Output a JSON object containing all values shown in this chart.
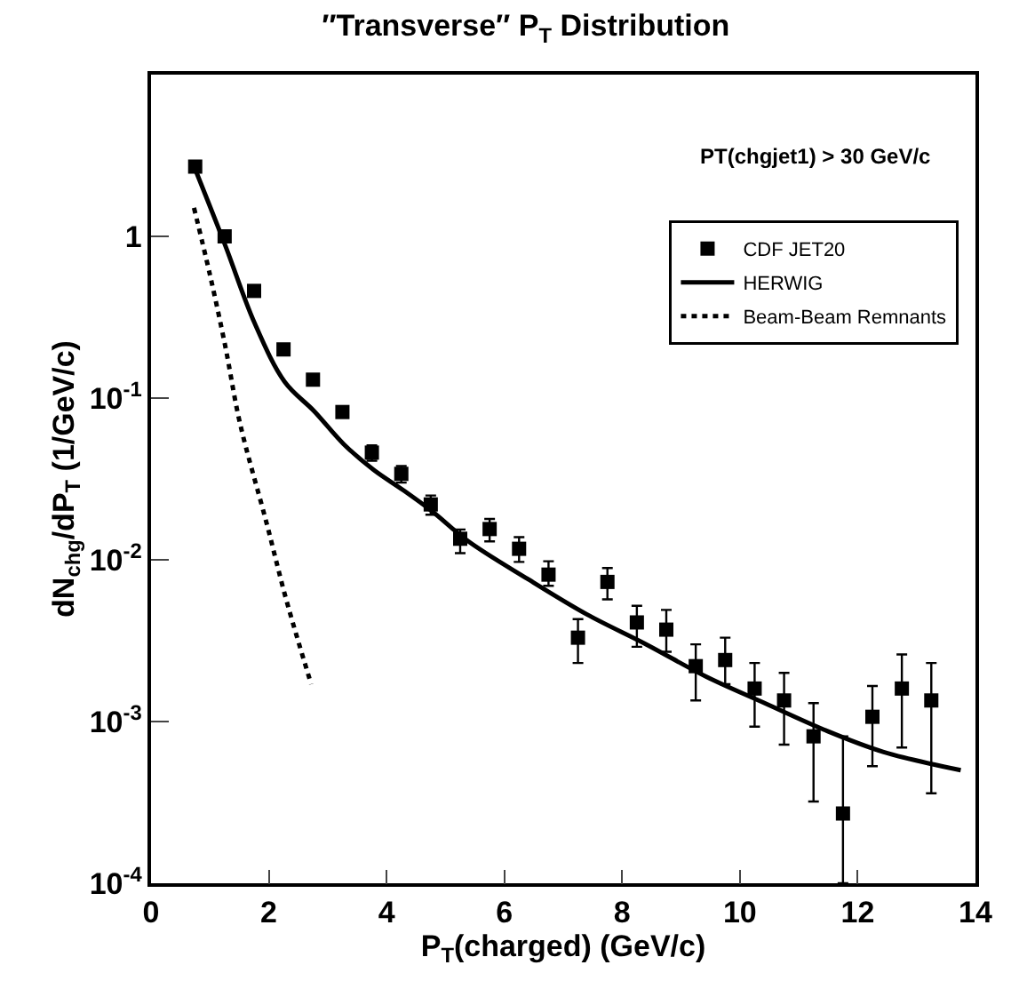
{
  "chart_data": {
    "type": "scatter",
    "title": "″Transverse″ P$_{T}$ Distribution",
    "xlabel": "P$_{T}$(charged) (GeV/c)",
    "ylabel": "dN$_{chg}$/dP$_{T}$ (1/GeV/c)",
    "annotations": [
      "PT(chgjet1) > 30 GeV/c"
    ],
    "log": "y",
    "grid": false,
    "legend": "top right",
    "xlim": [
      0,
      14
    ],
    "xticks": [
      0,
      2,
      4,
      6,
      8,
      10,
      12,
      14
    ],
    "ylim": [
      0.0001,
      10
    ],
    "yticks": [
      {
        "value": 0.0001,
        "label": "10$^{-4}$"
      },
      {
        "value": 0.001,
        "label": "10$^{-3}$"
      },
      {
        "value": 0.01,
        "label": "10$^{-2}$"
      },
      {
        "value": 0.1,
        "label": "10$^{-1}$"
      },
      1,
      {
        "value": 10,
        "label": null
      }
    ],
    "series": [
      {
        "name": "CDF JET20",
        "marker": "square",
        "color": "#000000",
        "x": [
          0.75,
          1.25,
          1.75,
          2.25,
          2.75,
          3.25,
          3.75,
          4.25,
          4.75,
          5.25,
          5.75,
          6.25,
          6.75,
          7.25,
          7.75,
          8.25,
          8.75,
          9.25,
          9.75,
          10.25,
          10.75,
          11.25,
          11.75,
          12.25,
          12.75,
          13.25
        ],
        "values": [
          2.7,
          1.0,
          0.46,
          0.2,
          0.13,
          0.082,
          0.046,
          0.034,
          0.022,
          0.0135,
          0.0155,
          0.0117,
          0.0081,
          0.0033,
          0.0073,
          0.0041,
          0.0037,
          0.0022,
          0.0024,
          0.0016,
          0.00135,
          0.00081,
          0.00027,
          0.00107,
          0.0016,
          0.00135
        ],
        "errors": [
          null,
          null,
          null,
          null,
          null,
          null,
          [
            0.041,
            0.051
          ],
          [
            0.03,
            0.038
          ],
          [
            0.019,
            0.025
          ],
          [
            0.011,
            0.0154
          ],
          [
            0.013,
            0.0179
          ],
          [
            0.0097,
            0.0138
          ],
          [
            0.0069,
            0.0098
          ],
          [
            0.0023,
            0.0043
          ],
          [
            0.0057,
            0.0089
          ],
          [
            0.0029,
            0.0052
          ],
          [
            0.0027,
            0.0049
          ],
          [
            0.00135,
            0.003
          ],
          [
            0.0017,
            0.0033
          ],
          [
            0.00093,
            0.0023
          ],
          [
            0.00072,
            0.002
          ],
          [
            0.00032,
            0.0013
          ],
          [
            0.0001,
            0.00081
          ],
          [
            0.00053,
            0.00166
          ],
          [
            0.00069,
            0.0026
          ],
          [
            0.00036,
            0.0023
          ]
        ]
      },
      {
        "name": "HERWIG",
        "type": "line",
        "color": "#000000",
        "line_style": "solid",
        "x": [
          0.75,
          1.26,
          1.76,
          2.27,
          2.77,
          3.27,
          3.78,
          4.28,
          4.77,
          5.39,
          6.4,
          7.4,
          8.41,
          9.42,
          10.42,
          11.43,
          12.43,
          13.75
        ],
        "values": [
          2.6,
          0.88,
          0.29,
          0.126,
          0.083,
          0.052,
          0.036,
          0.027,
          0.02,
          0.013,
          0.0076,
          0.0046,
          0.003,
          0.0019,
          0.0013,
          0.00089,
          0.00065,
          0.0005
        ]
      },
      {
        "name": "Beam-Beam Remnants",
        "type": "line",
        "color": "#000000",
        "line_style": "dotted",
        "x": [
          0.73,
          1.0,
          1.26,
          1.51,
          1.96,
          2.3,
          2.72
        ],
        "values": [
          1.5,
          0.58,
          0.21,
          0.07,
          0.017,
          0.0056,
          0.0017
        ]
      }
    ]
  }
}
